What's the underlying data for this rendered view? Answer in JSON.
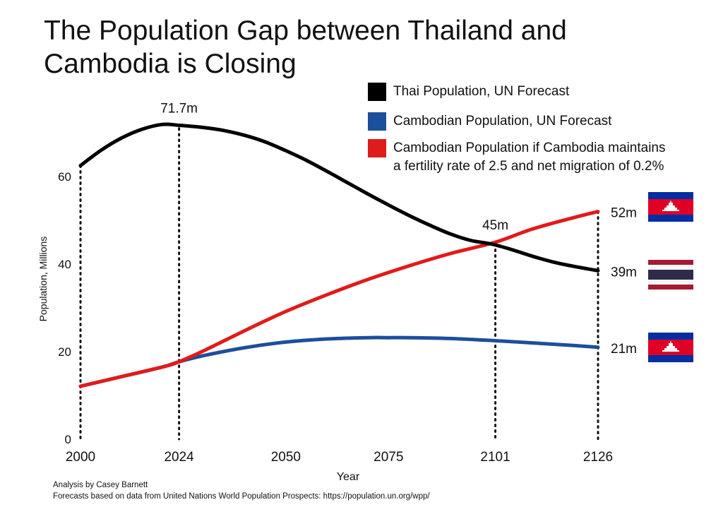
{
  "title": "The Population Gap between Thailand and Cambodia is Closing",
  "chart_data": {
    "type": "line",
    "xlabel": "Year",
    "ylabel": "Population, Millions",
    "xlim": [
      2000,
      2126
    ],
    "ylim": [
      0,
      72
    ],
    "x_ticks": [
      "2000",
      "2024",
      "2050",
      "2075",
      "2101",
      "2126"
    ],
    "y_ticks": [
      "0",
      "20",
      "40",
      "60"
    ],
    "grid": false,
    "legend_position": "top-right",
    "series": [
      {
        "name": "Thai Population, UN Forecast",
        "color": "#000000",
        "x": [
          2000,
          2005,
          2010,
          2015,
          2020,
          2024,
          2030,
          2035,
          2040,
          2045,
          2050,
          2055,
          2060,
          2065,
          2070,
          2075,
          2080,
          2085,
          2090,
          2095,
          2100,
          2105,
          2110,
          2115,
          2120,
          2126
        ],
        "y": [
          62.5,
          66,
          68.8,
          70.8,
          71.9,
          71.7,
          71.2,
          70.5,
          69.4,
          67.9,
          65.9,
          63.7,
          61.2,
          58.6,
          56.0,
          53.5,
          51.1,
          48.9,
          46.9,
          45.4,
          44.6,
          43.3,
          41.8,
          40.5,
          39.5,
          38.5
        ]
      },
      {
        "name": "Cambodian Population, UN Forecast",
        "color": "#1c4f9c",
        "x": [
          2000,
          2010,
          2020,
          2024,
          2030,
          2040,
          2050,
          2060,
          2070,
          2075,
          2080,
          2090,
          2101,
          2110,
          2120,
          2126
        ],
        "y": [
          12.1,
          14.3,
          16.5,
          17.7,
          19.1,
          20.9,
          22.2,
          22.9,
          23.2,
          23.2,
          23.2,
          23.0,
          22.5,
          22.0,
          21.4,
          21.0
        ]
      },
      {
        "name": "Cambodian Population if Cambodia maintains a fertility rate of 2.5 and net migration of 0.2%",
        "color": "#e01b1b",
        "x": [
          2000,
          2010,
          2020,
          2024,
          2030,
          2040,
          2050,
          2060,
          2070,
          2080,
          2090,
          2101,
          2110,
          2120,
          2126
        ],
        "y": [
          12.1,
          14.3,
          16.5,
          17.7,
          20.2,
          24.8,
          29.2,
          33.0,
          36.5,
          39.6,
          42.4,
          45.0,
          48.0,
          50.6,
          52.0
        ]
      }
    ],
    "annotations": [
      {
        "text": "71.7m",
        "x": 2024,
        "y": 71.7
      },
      {
        "text": "45m",
        "x": 2101,
        "y": 45
      },
      {
        "text": "52m",
        "x": 2126,
        "y": 52
      },
      {
        "text": "39m",
        "x": 2126,
        "y": 38.5
      },
      {
        "text": "21m",
        "x": 2126,
        "y": 21
      }
    ],
    "reference_lines_x": [
      2000,
      2024,
      2101,
      2126
    ]
  },
  "flags": [
    {
      "country": "Cambodia",
      "anchor_y": 52
    },
    {
      "country": "Thailand",
      "anchor_y": 38.5
    },
    {
      "country": "Cambodia",
      "anchor_y": 21
    }
  ],
  "credits": {
    "line1": "Analysis by Casey Barnett",
    "line2": "Forecasts based on data from United Nations World Population Prospects: https://population.un.org/wpp/"
  }
}
